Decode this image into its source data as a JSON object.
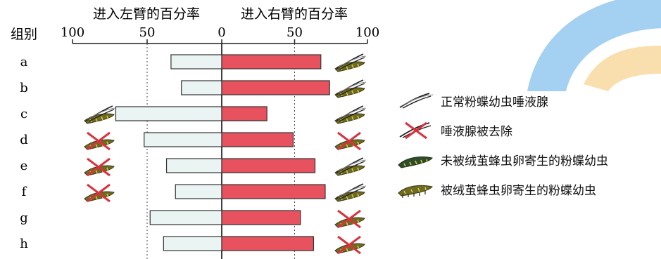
{
  "chart_data": {
    "type": "bar",
    "left_axis_title": "进入左臂的百分率",
    "right_axis_title": "进入右臂的百分率",
    "group_label": "组别",
    "tick_labels": [
      "100",
      "50",
      "0",
      "50",
      "100"
    ],
    "categories": [
      "a",
      "b",
      "c",
      "d",
      "e",
      "f",
      "g",
      "h"
    ],
    "series": [
      {
        "key": "left",
        "values": [
          34,
          27,
          71,
          52,
          37,
          31,
          48,
          39
        ]
      },
      {
        "key": "right",
        "values": [
          68,
          74,
          31,
          49,
          64,
          71,
          54,
          63
        ]
      }
    ],
    "xlim": [
      0,
      100
    ],
    "left_icons": [
      "",
      "",
      "gland",
      "removed",
      "removed",
      "removed",
      "",
      ""
    ],
    "right_icons": [
      "parasitized",
      "parasitized",
      "gland",
      "removed",
      "gland",
      "gland",
      "removed",
      "removed"
    ],
    "colors": {
      "left_bar": "#eaf4f3",
      "right_bar": "#e8525f",
      "bar_stroke": "#333333"
    }
  },
  "legend": {
    "items": [
      {
        "icon": "gland",
        "label": "正常粉蝶幼虫唾液腺"
      },
      {
        "icon": "removed",
        "label": "唾液腺被去除"
      },
      {
        "icon": "unparasitized",
        "label": "未被绒茧蜂虫卵寄生的粉蝶幼虫"
      },
      {
        "icon": "parasitized",
        "label": "被绒茧蜂虫卵寄生的粉蝶幼虫"
      }
    ]
  }
}
